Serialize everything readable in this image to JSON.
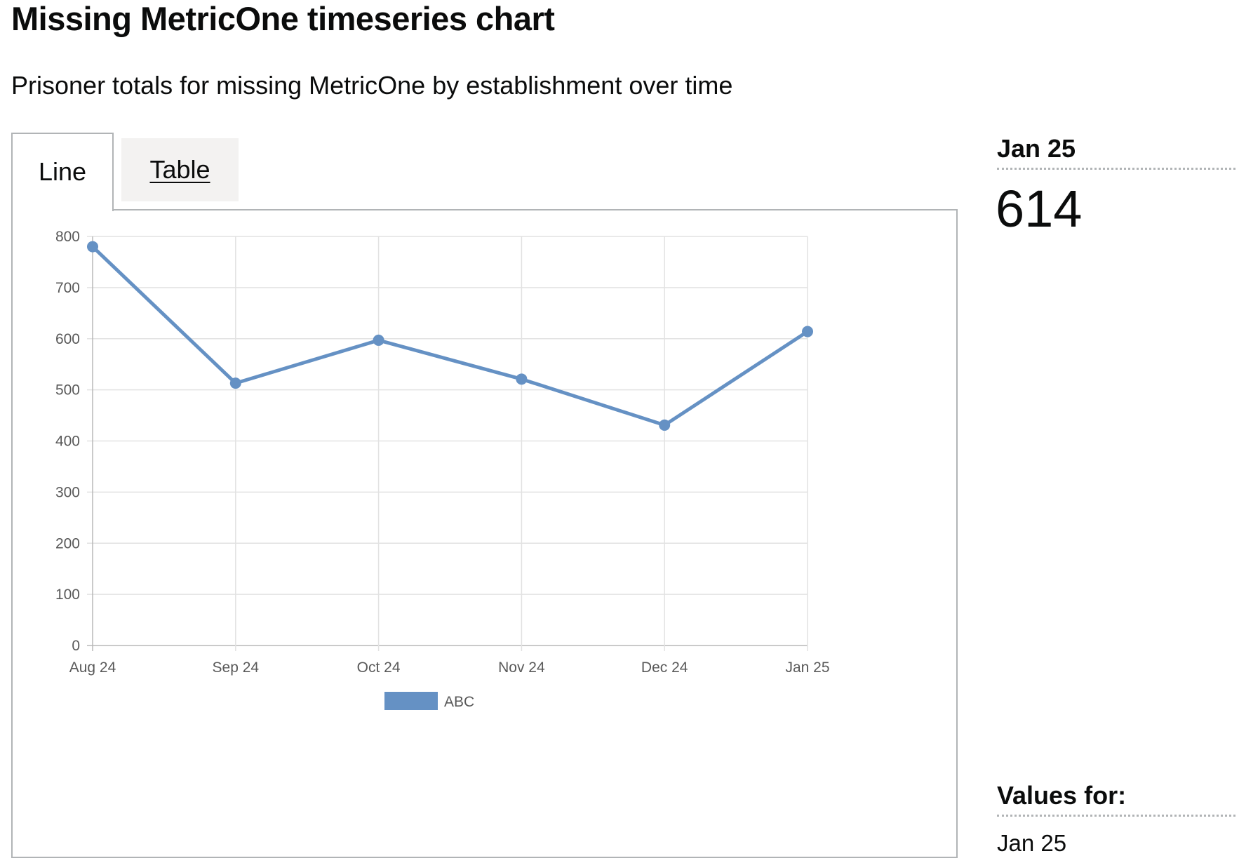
{
  "header": {
    "title": "Missing MetricOne timeseries chart",
    "subtitle": "Prisoner totals for missing MetricOne by establishment over time"
  },
  "tabs": [
    {
      "label": "Line",
      "selected": true
    },
    {
      "label": "Table",
      "selected": false
    }
  ],
  "side_panel": {
    "date_label": "Jan 25",
    "value": "614",
    "values_heading": "Values for:",
    "values_date": "Jan 25"
  },
  "chart_data": {
    "type": "line",
    "title": "",
    "xlabel": "",
    "ylabel": "",
    "categories": [
      "Aug 24",
      "Sep 24",
      "Oct 24",
      "Nov 24",
      "Dec 24",
      "Jan 25"
    ],
    "series": [
      {
        "name": "ABC",
        "values": [
          780,
          513,
          597,
          521,
          431,
          614
        ],
        "color": "#6591c4"
      }
    ],
    "ylim": [
      0,
      800
    ],
    "yticks": [
      0,
      100,
      200,
      300,
      400,
      500,
      600,
      700,
      800
    ],
    "grid": true,
    "legend": "bottom"
  }
}
